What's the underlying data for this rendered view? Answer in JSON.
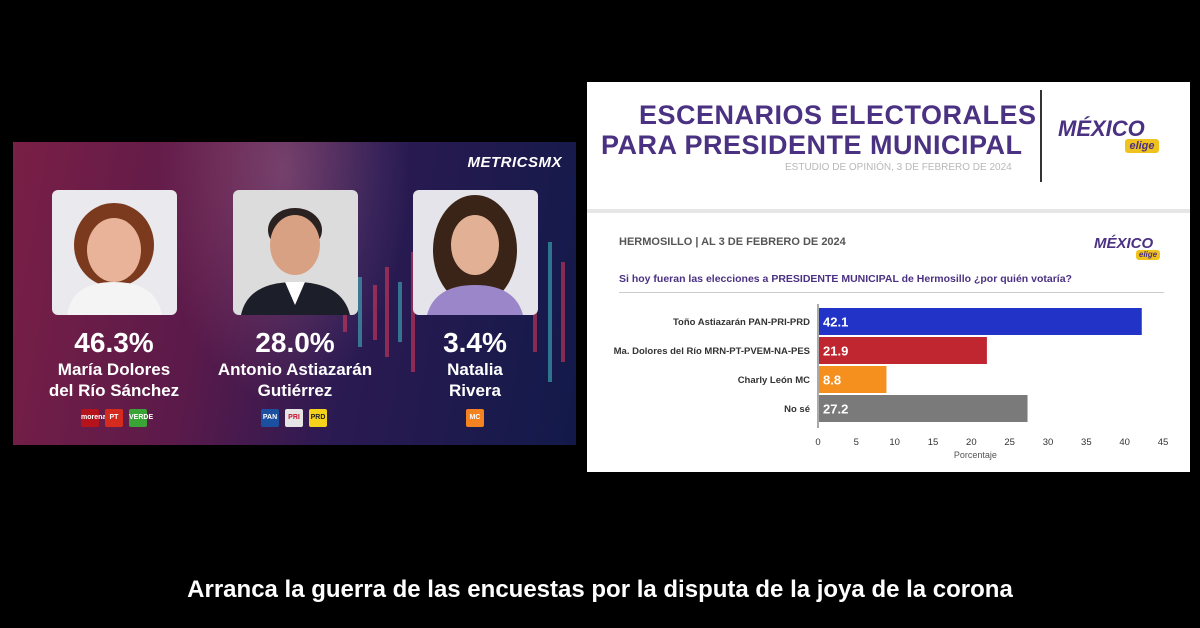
{
  "left_panel": {
    "brand": "METRICSMX",
    "candidates": [
      {
        "percent": "46.3%",
        "name_line1": "María Dolores",
        "name_line2": "del Río Sánchez",
        "party_logos": [
          {
            "label": "morena",
            "color": "#b5121b"
          },
          {
            "label": "PT",
            "color": "#d52b1e"
          },
          {
            "label": "VERDE",
            "color": "#3aa335"
          }
        ]
      },
      {
        "percent": "28.0%",
        "name_line1": "Antonio Astiazarán",
        "name_line2": "Gutiérrez",
        "party_logos": [
          {
            "label": "PAN",
            "color": "#1b4fa0"
          },
          {
            "label": "PRI",
            "color": "#e5e5e5"
          },
          {
            "label": "PRD",
            "color": "#f5d21c"
          }
        ]
      },
      {
        "percent": "3.4%",
        "name_line1": "Natalia",
        "name_line2": "Rivera",
        "party_logos": [
          {
            "label": "MC",
            "color": "#f58220"
          }
        ]
      }
    ]
  },
  "right_panel": {
    "title_line1": "ESCENARIOS ELECTORALES",
    "title_line2": "PARA PRESIDENTE MUNICIPAL",
    "subtitle": "ESTUDIO DE OPINIÓN, 3 DE FEBRERO DE 2024",
    "logo_main": "MÉXICO",
    "logo_sub": "elige",
    "location": "HERMOSILLO | AL 3 DE FEBRERO DE 2024",
    "question": "Si hoy fueran las elecciones a PRESIDENTE MUNICIPAL de Hermosillo ¿por quién votaría?"
  },
  "chart_data": {
    "type": "bar",
    "orientation": "horizontal",
    "categories": [
      "Toño Astiazarán PAN-PRI-PRD",
      "Ma. Dolores del Río MRN-PT-PVEM-NA-PES",
      "Charly León MC",
      "No sé"
    ],
    "values": [
      42.1,
      21.9,
      8.8,
      27.2
    ],
    "value_labels": [
      "42.1",
      "21.9",
      "8.8",
      "27.2"
    ],
    "colors": [
      "#2234c8",
      "#c0262f",
      "#f5901e",
      "#7a7a7a"
    ],
    "xlabel": "Porcentaje",
    "xlim": [
      0,
      45
    ],
    "xticks": [
      "0",
      "5",
      "10",
      "15",
      "20",
      "25",
      "30",
      "35",
      "40",
      "45"
    ],
    "grid": false
  },
  "caption": "Arranca la guerra de las encuestas por la disputa de la joya de la corona"
}
